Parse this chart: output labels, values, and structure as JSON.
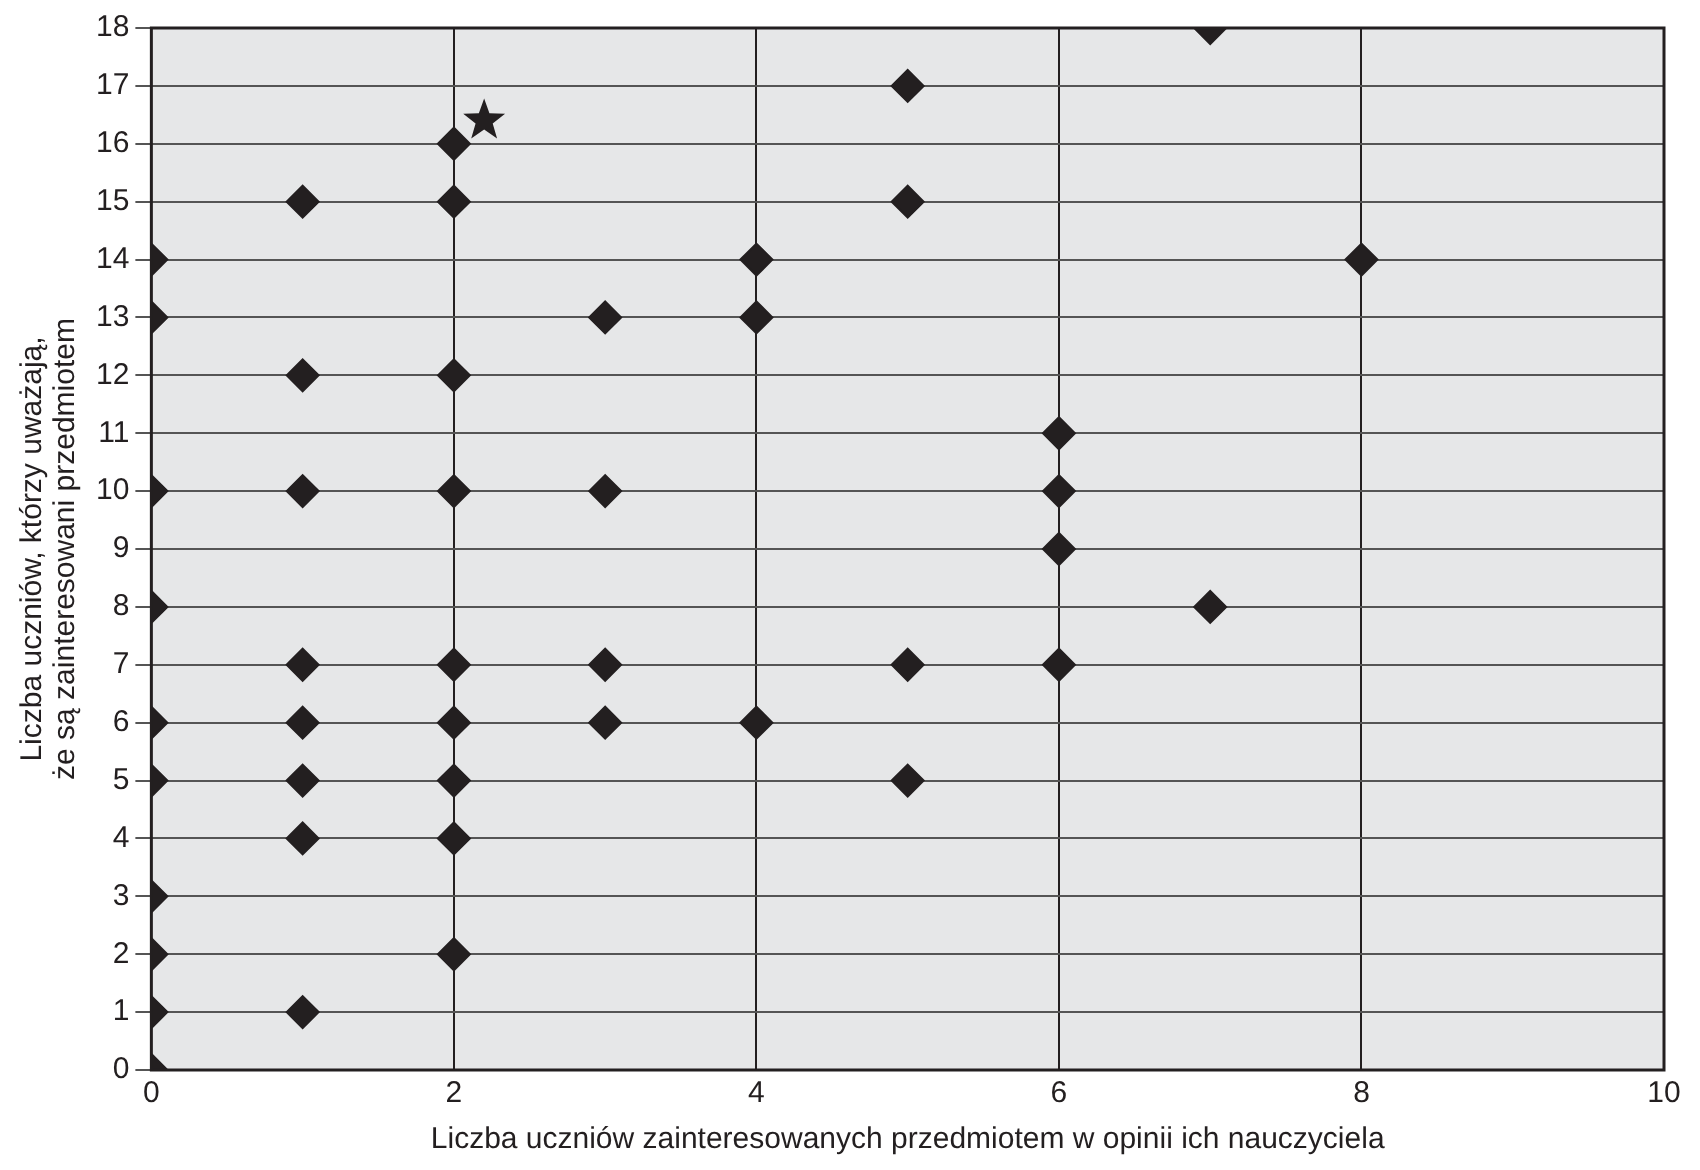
{
  "chart_data": {
    "type": "scatter",
    "xlabel": "Liczba uczniów zainteresowanych przedmiotem w opinii ich nauczyciela",
    "ylabel": "Liczba uczniów, którzy uważają,\nże są zainteresowani przedmiotem",
    "series": [
      {
        "color": "#231f20",
        "marker": "diamond",
        "x": [
          0,
          0,
          0,
          0,
          0,
          0,
          0,
          0,
          0,
          0,
          1,
          1,
          1,
          1,
          1,
          1,
          1,
          1,
          2,
          2,
          2,
          2,
          2,
          2,
          2,
          2,
          2,
          3,
          3,
          3,
          3,
          4,
          4,
          4,
          5,
          5,
          5,
          5,
          6,
          6,
          6,
          6,
          7,
          7,
          8
        ],
        "values": [
          0,
          1,
          2,
          3,
          5,
          6,
          8,
          10,
          13,
          14,
          1,
          4,
          5,
          6,
          7,
          10,
          12,
          15,
          2,
          4,
          5,
          6,
          7,
          10,
          12,
          15,
          16,
          6,
          7,
          10,
          13,
          6,
          13,
          14,
          5,
          7,
          15,
          17,
          7,
          9,
          10,
          11,
          8,
          18,
          14
        ]
      },
      {
        "color": "#231f20",
        "marker": "star",
        "x": [
          2.2
        ],
        "values": [
          16.4
        ]
      }
    ],
    "xlim": [
      0,
      10
    ],
    "xticks": [
      0,
      2,
      4,
      6,
      8,
      10
    ],
    "ylim": [
      0,
      18
    ],
    "yticks": [
      0,
      1,
      2,
      3,
      4,
      5,
      6,
      7,
      8,
      9,
      10,
      11,
      12,
      13,
      14,
      15,
      16,
      17,
      18
    ],
    "grid": true,
    "legend": false
  }
}
